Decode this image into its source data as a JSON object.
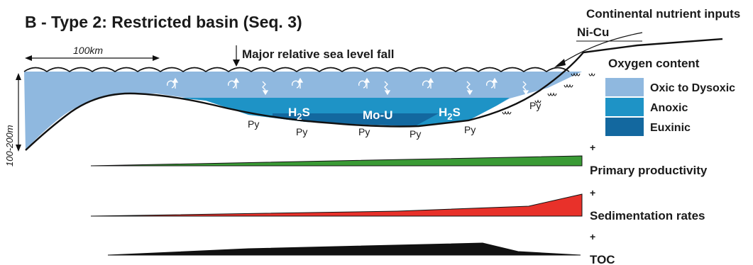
{
  "title": "B - Type 2: Restricted basin (Seq. 3)",
  "annotations": {
    "continental_inputs": "Continental nutrient inputs",
    "ni_cu": "Ni-Cu",
    "sea_level": "Major relative sea level fall",
    "scale_bar": "100km",
    "depth": "100-200m"
  },
  "basin_labels": {
    "h2s_left": "H",
    "h2s_left_sub": "2",
    "h2s_left_s": "S",
    "mo_u": "Mo-U",
    "h2s_right": "H",
    "h2s_right_sub": "2",
    "h2s_right_s": "S",
    "py": "Py"
  },
  "legend": {
    "title": "Oxygen content",
    "items": [
      {
        "label": "Oxic to Dysoxic",
        "color": "#8fb8df"
      },
      {
        "label": "Anoxic",
        "color": "#1e93c6"
      },
      {
        "label": "Euxinic",
        "color": "#13689f"
      }
    ]
  },
  "trends": [
    {
      "label": "Primary productivity",
      "plus": "+",
      "color": "#3a9b35"
    },
    {
      "label": "Sedimentation rates",
      "plus": "+",
      "color": "#e8312a"
    },
    {
      "label": "TOC",
      "plus": "+",
      "color": "#111111"
    }
  ],
  "colors": {
    "oxic": "#8fb8df",
    "anoxic": "#1e93c6",
    "euxinic": "#13689f",
    "outline": "#111111"
  }
}
